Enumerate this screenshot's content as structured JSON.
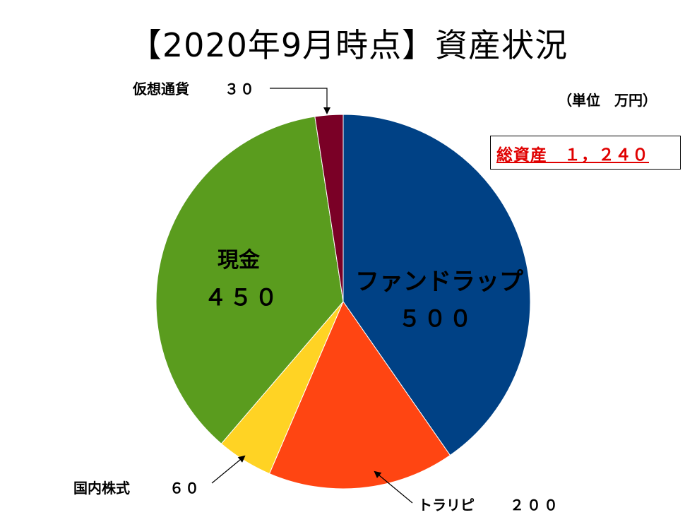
{
  "chart_data": {
    "type": "pie",
    "title": "【2020年9月時点】資産状況",
    "unit_note": "（単位　万円）",
    "total_label": "総資産　１，２４０",
    "slices": [
      {
        "name": "ファンドラップ",
        "value": 500,
        "label": "５００",
        "color": "#004185"
      },
      {
        "name": "トラリピ",
        "value": 200,
        "label": "２００",
        "color": "#ff4512"
      },
      {
        "name": "国内株式",
        "value": 60,
        "label": "６０",
        "color": "#ffd324"
      },
      {
        "name": "現金",
        "value": 450,
        "label": "４５０",
        "color": "#5a9c1e"
      },
      {
        "name": "仮想通貨",
        "value": 30,
        "label": "３０",
        "color": "#7a0026"
      }
    ]
  }
}
